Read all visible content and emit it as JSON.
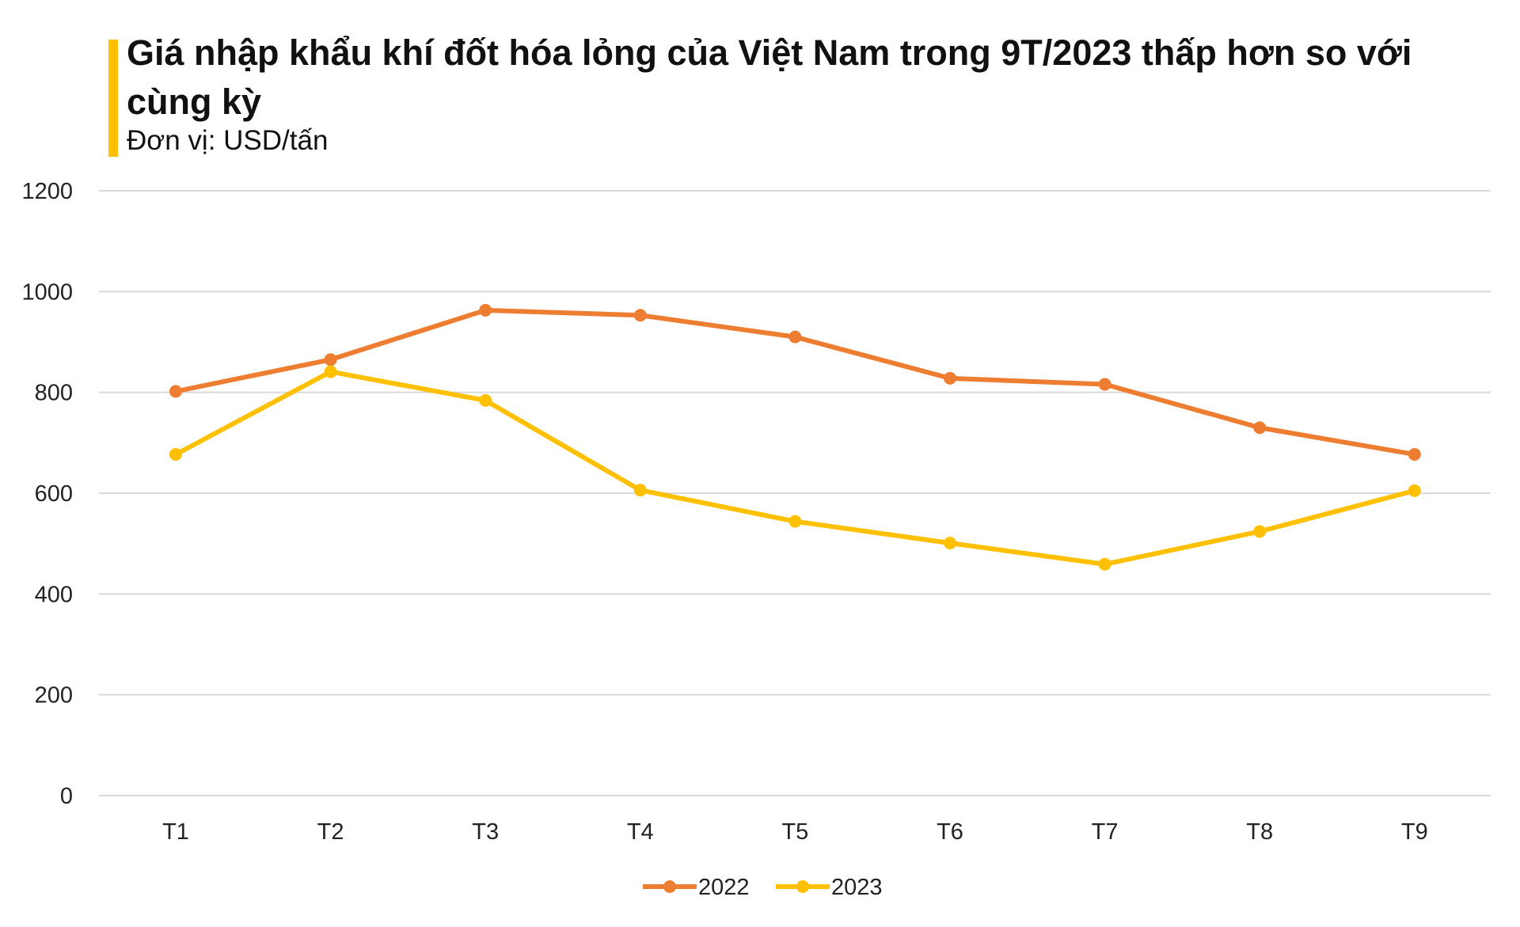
{
  "title": "Giá nhập khẩu khí đốt hóa lỏng của Việt Nam trong 9T/2023 thấp hơn so với cùng kỳ",
  "subtitle": "Đơn vị: USD/tấn",
  "colors": {
    "accent": "#FFC000",
    "grid": "#D9D9D9"
  },
  "chart_data": {
    "type": "line",
    "categories": [
      "T1",
      "T2",
      "T3",
      "T4",
      "T5",
      "T6",
      "T7",
      "T8",
      "T9"
    ],
    "ylim": [
      0,
      1200
    ],
    "yticks": [
      0,
      200,
      400,
      600,
      800,
      1000,
      1200
    ],
    "grid": true,
    "legend_position": "bottom",
    "series": [
      {
        "name": "2022",
        "color": "#ED7D31",
        "values": [
          802,
          865,
          963,
          953,
          910,
          828,
          816,
          730,
          677
        ]
      },
      {
        "name": "2023",
        "color": "#FFC000",
        "values": [
          677,
          841,
          784,
          606,
          544,
          501,
          459,
          524,
          605
        ]
      }
    ]
  }
}
